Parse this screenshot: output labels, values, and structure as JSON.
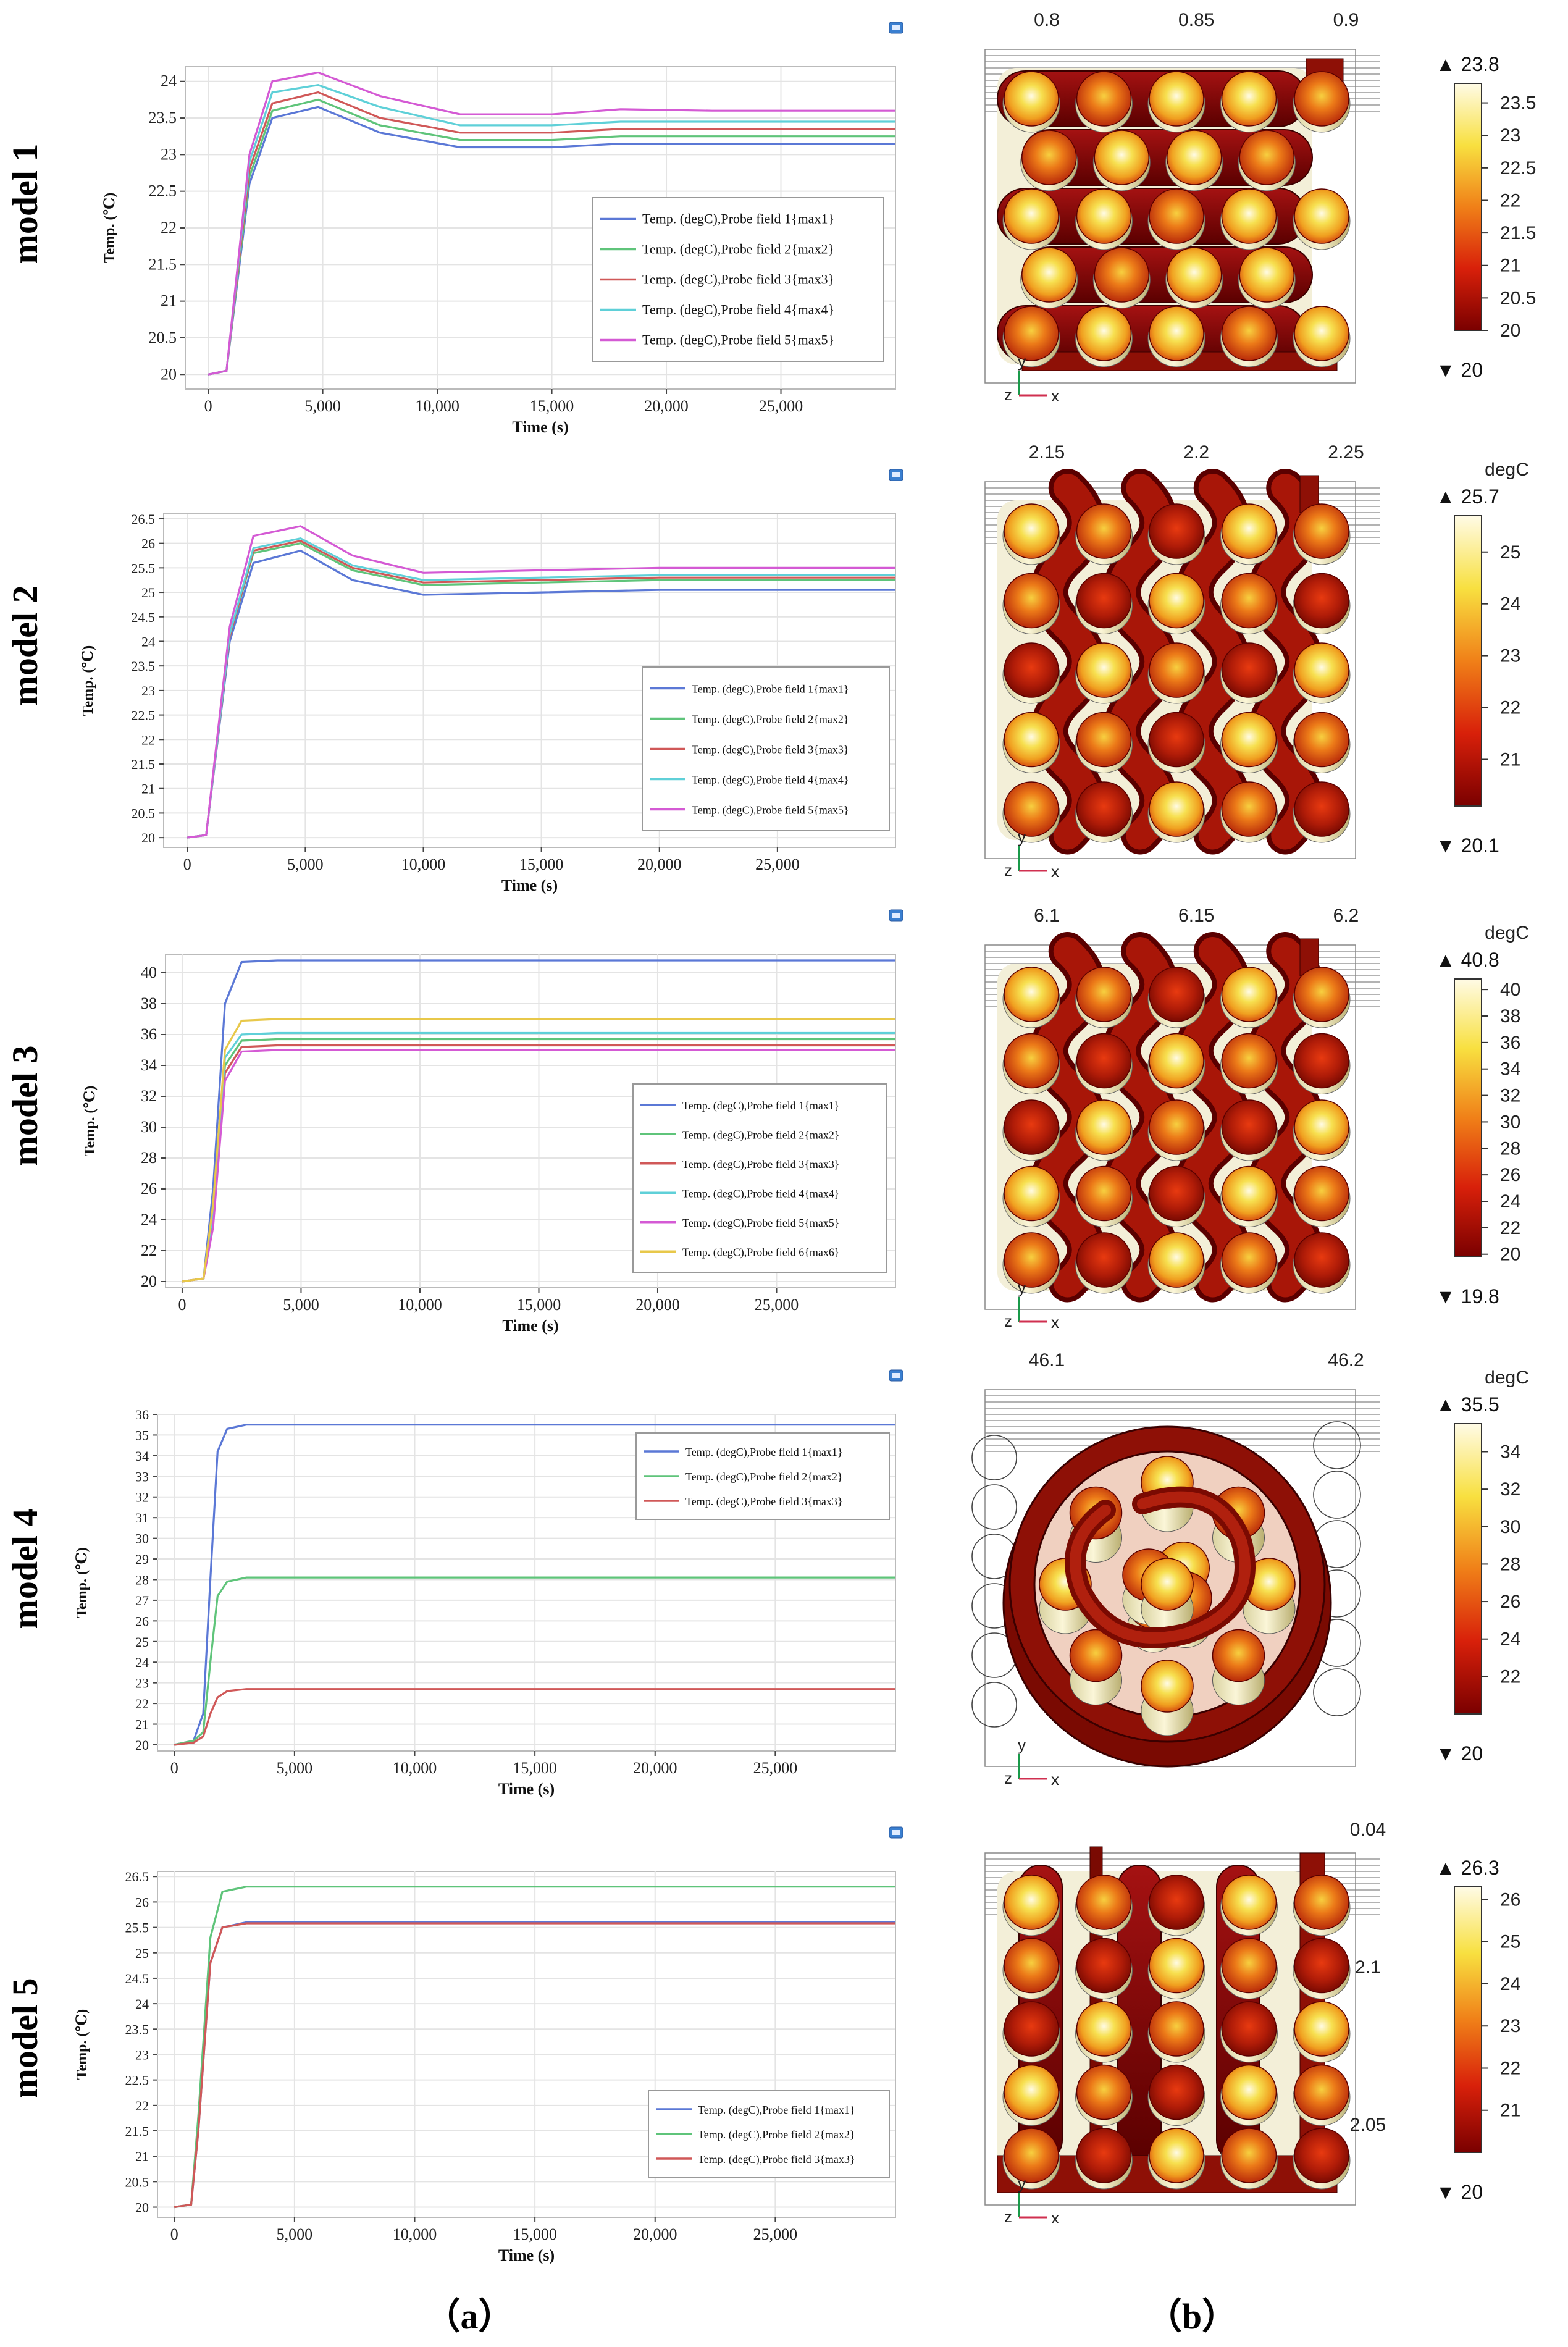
{
  "figure": {
    "label_a": "（a）",
    "label_b": "（b）",
    "axis_x_label": "Time (s)",
    "axis_y_label": "Temp. (℃)",
    "unit": "degC"
  },
  "colors": {
    "series": [
      "#5b78d6",
      "#5fc47a",
      "#d05858",
      "#5fd0d8",
      "#d45ad4",
      "#e8c84a"
    ],
    "axis": "#444444",
    "grid": "#e4e4e4",
    "heat_dark": "#7a0000",
    "heat_mid": "#e8501a",
    "heat_hot": "#f7dc40",
    "heat_white": "#fffbe6"
  },
  "chart_data": [
    {
      "type": "line",
      "model": "model 1",
      "title": "",
      "xlabel": "Time (s)",
      "ylabel": "Temp. (℃)",
      "xlim": [
        -1000,
        30000
      ],
      "ylim": [
        19.8,
        24.2
      ],
      "xticks": [
        0,
        5000,
        10000,
        15000,
        20000,
        25000
      ],
      "xtick_labels": [
        "0",
        "5,000",
        "10,000",
        "15,000",
        "20,000",
        "25,000"
      ],
      "yticks": [
        20,
        20.5,
        21,
        21.5,
        22,
        22.5,
        23,
        23.5,
        24
      ],
      "ytick_labels": [
        "20",
        "20.5",
        "21",
        "21.5",
        "22",
        "22.5",
        "23",
        "23.5",
        "24"
      ],
      "x": [
        0,
        800,
        1800,
        2800,
        4800,
        7500,
        11000,
        15000,
        18000,
        22000,
        30000
      ],
      "legend": "right",
      "series": [
        {
          "name": "Temp. (degC),Probe field 1{max1}",
          "values": [
            20,
            20.05,
            22.6,
            23.5,
            23.65,
            23.3,
            23.1,
            23.1,
            23.15,
            23.15,
            23.15
          ]
        },
        {
          "name": "Temp. (degC),Probe field 2{max2}",
          "values": [
            20,
            20.05,
            22.7,
            23.6,
            23.75,
            23.4,
            23.2,
            23.2,
            23.25,
            23.25,
            23.25
          ]
        },
        {
          "name": "Temp. (degC),Probe field 3{max3}",
          "values": [
            20,
            20.05,
            22.8,
            23.7,
            23.85,
            23.5,
            23.3,
            23.3,
            23.35,
            23.35,
            23.35
          ]
        },
        {
          "name": "Temp. (degC),Probe field 4{max4}",
          "values": [
            20,
            20.05,
            22.9,
            23.85,
            23.95,
            23.65,
            23.4,
            23.4,
            23.45,
            23.45,
            23.45
          ]
        },
        {
          "name": "Temp. (degC),Probe field 5{max5}",
          "values": [
            20,
            20.05,
            23.0,
            24.0,
            24.12,
            23.8,
            23.55,
            23.55,
            23.62,
            23.6,
            23.6
          ]
        }
      ]
    },
    {
      "type": "line",
      "model": "model 2",
      "title": "",
      "xlabel": "Time (s)",
      "ylabel": "Temp. (℃)",
      "xlim": [
        -1000,
        30000
      ],
      "ylim": [
        19.8,
        26.6
      ],
      "xticks": [
        0,
        5000,
        10000,
        15000,
        20000,
        25000
      ],
      "xtick_labels": [
        "0",
        "5,000",
        "10,000",
        "15,000",
        "20,000",
        "25,000"
      ],
      "yticks": [
        20,
        20.5,
        21,
        21.5,
        22,
        22.5,
        23,
        23.5,
        24,
        24.5,
        25,
        25.5,
        26,
        26.5
      ],
      "ytick_labels": [
        "20",
        "20.5",
        "21",
        "21.5",
        "22",
        "22.5",
        "23",
        "23.5",
        "24",
        "24.5",
        "25",
        "25.5",
        "26",
        "26.5"
      ],
      "x": [
        0,
        800,
        1800,
        2800,
        4800,
        7000,
        10000,
        15000,
        20000,
        30000
      ],
      "legend": "bottom-right",
      "series": [
        {
          "name": "Temp. (degC),Probe field 1{max1}",
          "values": [
            20,
            20.05,
            24.0,
            25.6,
            25.85,
            25.25,
            24.95,
            25.0,
            25.05,
            25.05
          ]
        },
        {
          "name": "Temp. (degC),Probe field 2{max2}",
          "values": [
            20,
            20.05,
            24.1,
            25.8,
            26.0,
            25.45,
            25.15,
            25.2,
            25.25,
            25.25
          ]
        },
        {
          "name": "Temp. (degC),Probe field 3{max3}",
          "values": [
            20,
            20.05,
            24.1,
            25.85,
            26.05,
            25.5,
            25.2,
            25.25,
            25.3,
            25.3
          ]
        },
        {
          "name": "Temp. (degC),Probe field 4{max4}",
          "values": [
            20,
            20.05,
            24.15,
            25.9,
            26.1,
            25.55,
            25.25,
            25.3,
            25.35,
            25.35
          ]
        },
        {
          "name": "Temp. (degC),Probe field 5{max5}",
          "values": [
            20,
            20.05,
            24.3,
            26.15,
            26.35,
            25.75,
            25.4,
            25.45,
            25.5,
            25.5
          ]
        }
      ]
    },
    {
      "type": "line",
      "model": "model 3",
      "title": "",
      "xlabel": "Time (s)",
      "ylabel": "Temp. (℃)",
      "xlim": [
        -700,
        30000
      ],
      "ylim": [
        19.6,
        41.2
      ],
      "xticks": [
        0,
        5000,
        10000,
        15000,
        20000,
        25000
      ],
      "xtick_labels": [
        "0",
        "5,000",
        "10,000",
        "15,000",
        "20,000",
        "25,000"
      ],
      "yticks": [
        20,
        22,
        24,
        26,
        28,
        30,
        32,
        34,
        36,
        38,
        40
      ],
      "ytick_labels": [
        "20",
        "22",
        "24",
        "26",
        "28",
        "30",
        "32",
        "34",
        "36",
        "38",
        "40"
      ],
      "x": [
        0,
        900,
        1300,
        1800,
        2500,
        4000,
        30000
      ],
      "legend": "right",
      "series": [
        {
          "name": "Temp. (degC),Probe field 1{max1}",
          "values": [
            20,
            20.2,
            26,
            38,
            40.7,
            40.8,
            40.8
          ]
        },
        {
          "name": "Temp. (degC),Probe field 2{max2}",
          "values": [
            20,
            20.2,
            24,
            34,
            35.6,
            35.7,
            35.7
          ]
        },
        {
          "name": "Temp. (degC),Probe field 3{max3}",
          "values": [
            20,
            20.2,
            24,
            33.5,
            35.2,
            35.3,
            35.3
          ]
        },
        {
          "name": "Temp. (degC),Probe field 4{max4}",
          "values": [
            20,
            20.2,
            24.5,
            34.5,
            36.0,
            36.1,
            36.1
          ]
        },
        {
          "name": "Temp. (degC),Probe field 5{max5}",
          "values": [
            20,
            20.2,
            23.5,
            33,
            34.9,
            35.0,
            35.0
          ]
        },
        {
          "name": "Temp. (degC),Probe field 6{max6}",
          "values": [
            20,
            20.2,
            25,
            35,
            36.9,
            37.0,
            37.0
          ]
        }
      ]
    },
    {
      "type": "line",
      "model": "model 4",
      "title": "",
      "xlabel": "Time (s)",
      "ylabel": "Temp. (℃)",
      "xlim": [
        -700,
        30000
      ],
      "ylim": [
        19.7,
        36
      ],
      "xticks": [
        0,
        5000,
        10000,
        15000,
        20000,
        25000
      ],
      "xtick_labels": [
        "0",
        "5,000",
        "10,000",
        "15,000",
        "20,000",
        "25,000"
      ],
      "yticks": [
        20,
        21,
        22,
        23,
        24,
        25,
        26,
        27,
        28,
        29,
        30,
        31,
        32,
        33,
        34,
        35,
        36
      ],
      "ytick_labels": [
        "20",
        "21",
        "22",
        "23",
        "24",
        "25",
        "26",
        "27",
        "28",
        "29",
        "30",
        "31",
        "32",
        "33",
        "34",
        "35",
        "36"
      ],
      "x": [
        0,
        800,
        1200,
        1500,
        1800,
        2200,
        3000,
        30000
      ],
      "legend": "top-right",
      "series": [
        {
          "name": "Temp. (degC),Probe field 1{max1}",
          "values": [
            20,
            20.2,
            21.5,
            28,
            34.2,
            35.3,
            35.5,
            35.5
          ]
        },
        {
          "name": "Temp. (degC),Probe field 2{max2}",
          "values": [
            20,
            20.2,
            20.6,
            24,
            27.2,
            27.9,
            28.1,
            28.1
          ]
        },
        {
          "name": "Temp. (degC),Probe field 3{max3}",
          "values": [
            20,
            20.1,
            20.4,
            21.5,
            22.3,
            22.6,
            22.7,
            22.7
          ]
        }
      ]
    },
    {
      "type": "line",
      "model": "model 5",
      "title": "",
      "xlabel": "Time (s)",
      "ylabel": "Temp. (℃)",
      "xlim": [
        -700,
        30000
      ],
      "ylim": [
        19.8,
        26.6
      ],
      "xticks": [
        0,
        5000,
        10000,
        15000,
        20000,
        25000
      ],
      "xtick_labels": [
        "0",
        "5,000",
        "10,000",
        "15,000",
        "20,000",
        "25,000"
      ],
      "yticks": [
        20,
        20.5,
        21,
        21.5,
        22,
        22.5,
        23,
        23.5,
        24,
        24.5,
        25,
        25.5,
        26,
        26.5
      ],
      "ytick_labels": [
        "20",
        "20.5",
        "21",
        "21.5",
        "22",
        "22.5",
        "23",
        "23.5",
        "24",
        "24.5",
        "25",
        "25.5",
        "26",
        "26.5"
      ],
      "x": [
        0,
        700,
        1000,
        1500,
        2000,
        3000,
        30000
      ],
      "legend": "bottom-right",
      "series": [
        {
          "name": "Temp. (degC),Probe field 1{max1}",
          "values": [
            20,
            20.05,
            21.5,
            24.8,
            25.5,
            25.6,
            25.6
          ]
        },
        {
          "name": "Temp. (degC),Probe field 2{max2}",
          "values": [
            20,
            20.05,
            21.8,
            25.3,
            26.2,
            26.3,
            26.3
          ]
        },
        {
          "name": "Temp. (degC),Probe field 3{max3}",
          "values": [
            20,
            20.05,
            21.5,
            24.8,
            25.5,
            25.58,
            25.58
          ]
        }
      ]
    }
  ],
  "renders": [
    {
      "model": "model 1",
      "axis_ticks": [
        "0.8",
        "0.85",
        "0.9"
      ],
      "unit": "",
      "max": "23.8",
      "min": "20",
      "colorbar_ticks": [
        "23.5",
        "23",
        "22.5",
        "22",
        "21.5",
        "21",
        "20.5",
        "20"
      ],
      "colorbar_values": [
        23.5,
        23,
        22.5,
        22,
        21.5,
        21,
        20.5,
        20
      ],
      "range": [
        20,
        23.8
      ],
      "shape": "serpentine",
      "axes_labels": [
        "y",
        "z",
        "x"
      ]
    },
    {
      "model": "model 2",
      "axis_ticks": [
        "2.15",
        "2.2",
        "2.25"
      ],
      "unit": "degC",
      "max": "25.7",
      "min": "20.1",
      "colorbar_ticks": [
        "25",
        "24",
        "23",
        "22",
        "21"
      ],
      "colorbar_values": [
        25,
        24,
        23,
        22,
        21
      ],
      "range": [
        20.1,
        25.7
      ],
      "shape": "wave",
      "axes_labels": [
        "y",
        "z",
        "x"
      ]
    },
    {
      "model": "model 3",
      "axis_ticks": [
        "6.1",
        "6.15",
        "6.2"
      ],
      "unit": "degC",
      "max": "40.8",
      "min": "19.8",
      "colorbar_ticks": [
        "40",
        "38",
        "36",
        "34",
        "32",
        "30",
        "28",
        "26",
        "24",
        "22",
        "20"
      ],
      "colorbar_values": [
        40,
        38,
        36,
        34,
        32,
        30,
        28,
        26,
        24,
        22,
        20
      ],
      "range": [
        19.8,
        40.8
      ],
      "shape": "wave",
      "axes_labels": [
        "y",
        "z",
        "x"
      ]
    },
    {
      "model": "model 4",
      "axis_ticks": [
        "46.1",
        "46.2"
      ],
      "unit": "degC",
      "max": "35.5",
      "min": "20",
      "colorbar_ticks": [
        "34",
        "32",
        "30",
        "28",
        "26",
        "24",
        "22"
      ],
      "colorbar_values": [
        34,
        32,
        30,
        28,
        26,
        24,
        22
      ],
      "range": [
        20,
        35.5
      ],
      "shape": "spiral",
      "axes_labels": [
        "y",
        "z",
        "x"
      ]
    },
    {
      "model": "model 5",
      "axis_ticks": [
        "0.04",
        "2.1",
        "2.05"
      ],
      "unit": "",
      "max": "26.3",
      "min": "20",
      "colorbar_ticks": [
        "26",
        "25",
        "24",
        "23",
        "22",
        "21"
      ],
      "colorbar_values": [
        26,
        25,
        24,
        23,
        22,
        21
      ],
      "range": [
        20,
        26.3
      ],
      "shape": "vertical",
      "axes_labels": [
        "y",
        "z",
        "x"
      ]
    }
  ]
}
